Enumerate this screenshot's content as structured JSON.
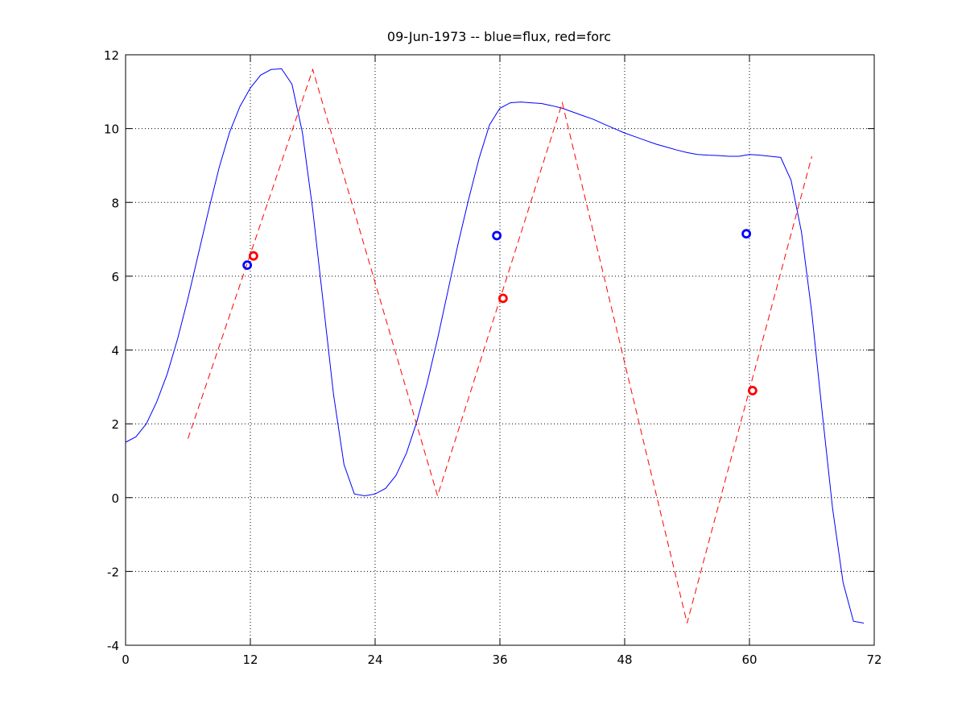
{
  "chart_data": {
    "type": "line",
    "title": "09-Jun-1973 -- blue=flux, red=forc",
    "xlabel": "",
    "ylabel": "",
    "xlim": [
      0,
      72
    ],
    "ylim": [
      -4,
      12
    ],
    "xticks": [
      0,
      12,
      24,
      36,
      48,
      60,
      72
    ],
    "yticks": [
      -4,
      -2,
      0,
      2,
      4,
      6,
      8,
      10,
      12
    ],
    "grid": true,
    "series": [
      {
        "color": "#0000ff",
        "style": "solid",
        "x": [
          0,
          1,
          2,
          3,
          4,
          5,
          6,
          7,
          8,
          9,
          10,
          11,
          12,
          13,
          14,
          15,
          16,
          17,
          18,
          19,
          20,
          21,
          22,
          23,
          24,
          25,
          26,
          27,
          28,
          29,
          30,
          31,
          32,
          33,
          34,
          35,
          36,
          37,
          38,
          39,
          40,
          41,
          42,
          43,
          44,
          45,
          46,
          47,
          48,
          49,
          50,
          51,
          52,
          53,
          54,
          55,
          56,
          57,
          58,
          59,
          60,
          61,
          62,
          63,
          64,
          65,
          66,
          67,
          68,
          69,
          70,
          71
        ],
        "y": [
          1.5,
          1.65,
          2.0,
          2.6,
          3.35,
          4.3,
          5.4,
          6.6,
          7.8,
          8.95,
          9.9,
          10.6,
          11.1,
          11.45,
          11.6,
          11.62,
          11.2,
          9.9,
          7.8,
          5.3,
          2.8,
          0.9,
          0.1,
          0.05,
          0.1,
          0.25,
          0.6,
          1.2,
          2.05,
          3.1,
          4.3,
          5.6,
          6.9,
          8.1,
          9.2,
          10.1,
          10.55,
          10.7,
          10.72,
          10.7,
          10.68,
          10.62,
          10.55,
          10.45,
          10.35,
          10.25,
          10.12,
          10.0,
          9.88,
          9.78,
          9.68,
          9.58,
          9.5,
          9.42,
          9.35,
          9.3,
          9.28,
          9.27,
          9.25,
          9.25,
          9.3,
          9.28,
          9.25,
          9.22,
          8.6,
          7.2,
          5.0,
          2.3,
          -0.3,
          -2.3,
          -3.35,
          -3.4
        ]
      },
      {
        "color": "#ff0000",
        "style": "dashed",
        "x": [
          6,
          18,
          30,
          42,
          54,
          66
        ],
        "y": [
          1.6,
          11.6,
          0.05,
          10.7,
          -3.4,
          9.25
        ]
      }
    ],
    "markers": [
      {
        "x": 11.7,
        "y": 6.3,
        "color": "#0000ff"
      },
      {
        "x": 12.3,
        "y": 6.55,
        "color": "#ff0000"
      },
      {
        "x": 35.7,
        "y": 7.1,
        "color": "#0000ff"
      },
      {
        "x": 36.3,
        "y": 5.4,
        "color": "#ff0000"
      },
      {
        "x": 59.7,
        "y": 7.15,
        "color": "#0000ff"
      },
      {
        "x": 60.3,
        "y": 2.9,
        "color": "#ff0000"
      }
    ]
  }
}
